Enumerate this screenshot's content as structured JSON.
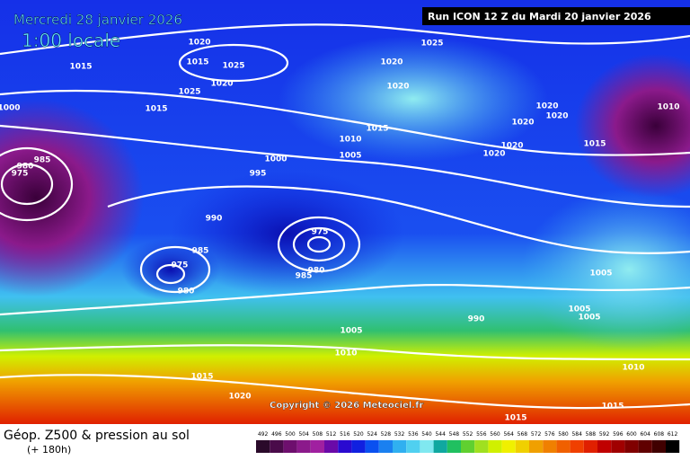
{
  "header": {
    "date": "Mercredi 28 janvier 2026",
    "time": "1:00 locale",
    "run": "Run ICON 12 Z du Mardi 20 janvier 2026"
  },
  "copyright": "Copyright © 2026 Meteociel.fr",
  "footer": {
    "title": "Géop. Z500 & pression au sol",
    "subtitle": "(+ 180h)"
  },
  "isobars": [
    1020,
    1015,
    1025,
    1020,
    1015,
    1025,
    1015,
    1000,
    1025,
    1020,
    1020,
    1015,
    1010,
    1005,
    1000,
    995,
    985,
    980,
    975,
    990,
    985,
    975,
    980,
    975,
    980,
    985,
    1020,
    1020,
    1020,
    1020,
    1020,
    1015,
    1010,
    1005,
    1005,
    1005,
    990,
    1005,
    1010,
    1015,
    1020,
    1010,
    1015,
    1015
  ],
  "scale": {
    "ticks": [
      492,
      496,
      500,
      504,
      508,
      512,
      516,
      520,
      524,
      528,
      532,
      536,
      540,
      544,
      548,
      552,
      556,
      560,
      564,
      568,
      572,
      576,
      580,
      584,
      588,
      592,
      596,
      600,
      604,
      608,
      612
    ],
    "colors": [
      "#2a0a2a",
      "#4a0b4a",
      "#6e0f6e",
      "#8b1a8b",
      "#a020a0",
      "#6a0aa8",
      "#2a0ad0",
      "#1020e0",
      "#0a50f0",
      "#1a80f0",
      "#30b0f0",
      "#50d0f0",
      "#80e8f0",
      "#10a8a0",
      "#20c060",
      "#60d030",
      "#a0e020",
      "#d0f000",
      "#f0f000",
      "#f0d000",
      "#f0a000",
      "#f08000",
      "#f06000",
      "#f04000",
      "#e02000",
      "#c00000",
      "#a00000",
      "#800000",
      "#600000",
      "#400000",
      "#000000"
    ]
  }
}
